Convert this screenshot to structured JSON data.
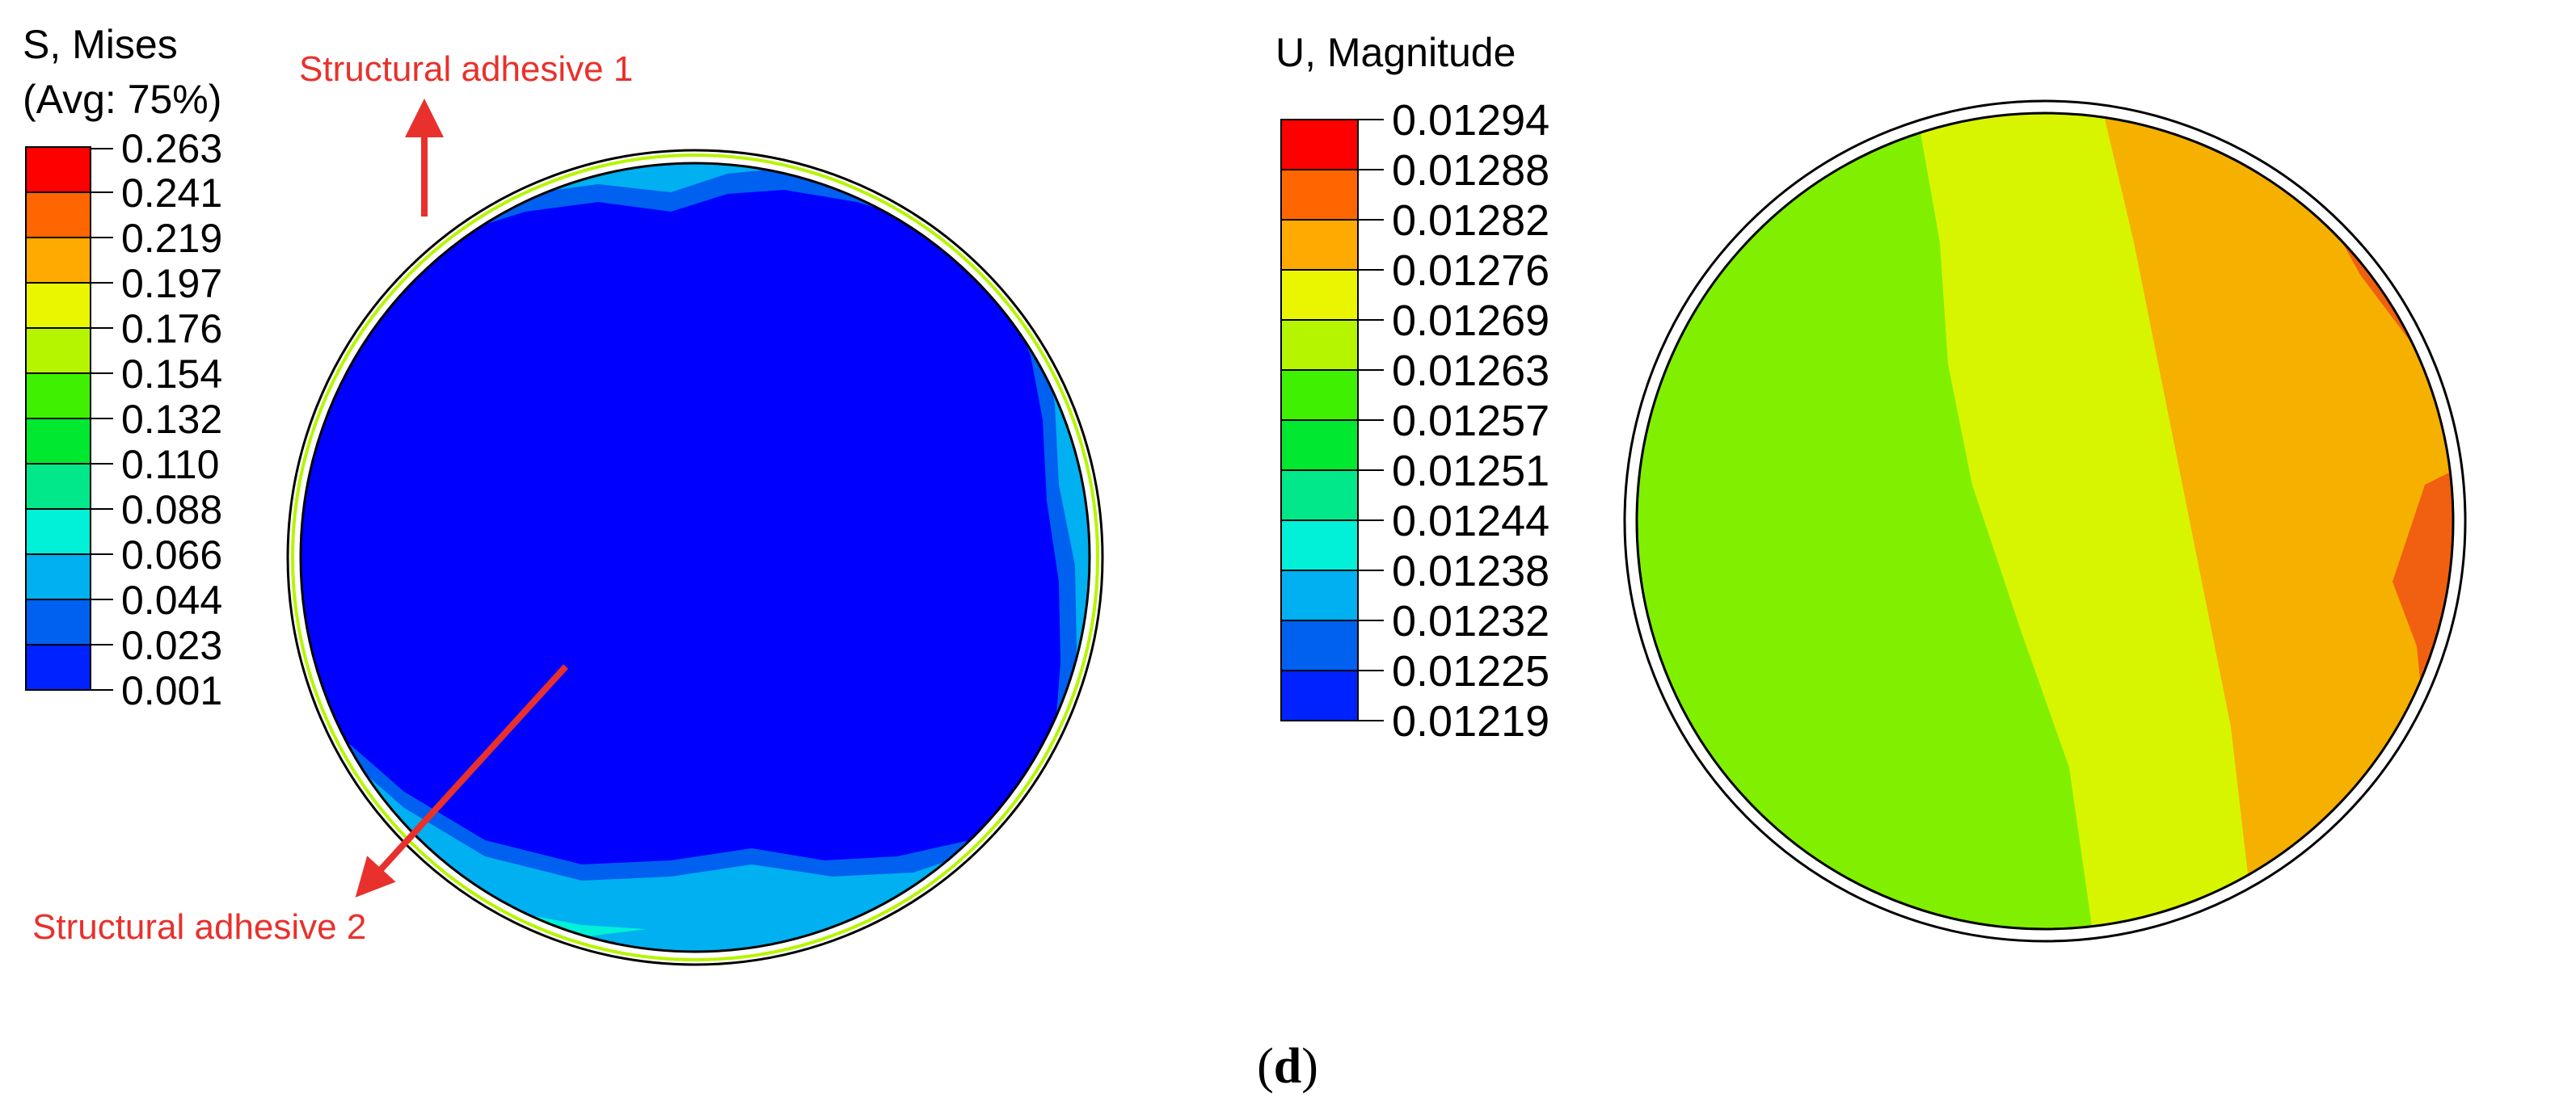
{
  "colors": {
    "contour": [
      "#ff0000",
      "#ff6600",
      "#ffaa00",
      "#eaf500",
      "#b6f500",
      "#3ff000",
      "#00e830",
      "#00e88a",
      "#00f0d8",
      "#00b0f0",
      "#0060f0",
      "#0022ff",
      "#0000ff"
    ],
    "annotation": "#e8312c"
  },
  "stress_panel": {
    "title_line1": "S, Mises",
    "title_line2": "(Avg: 75%)",
    "levels": [
      "0.263",
      "0.241",
      "0.219",
      "0.197",
      "0.176",
      "0.154",
      "0.132",
      "0.110",
      "0.088",
      "0.066",
      "0.044",
      "0.023",
      "0.001"
    ],
    "annotations": {
      "adhesive_1": "Structural adhesive 1",
      "adhesive_2": "Structural adhesive 2"
    }
  },
  "displacement_panel": {
    "title": "U, Magnitude",
    "levels": [
      "0.01294",
      "0.01288",
      "0.01282",
      "0.01276",
      "0.01269",
      "0.01263",
      "0.01257",
      "0.01251",
      "0.01244",
      "0.01238",
      "0.01232",
      "0.01225",
      "0.01219"
    ]
  },
  "caption": {
    "open": "(",
    "letter": "d",
    "close": ")"
  }
}
